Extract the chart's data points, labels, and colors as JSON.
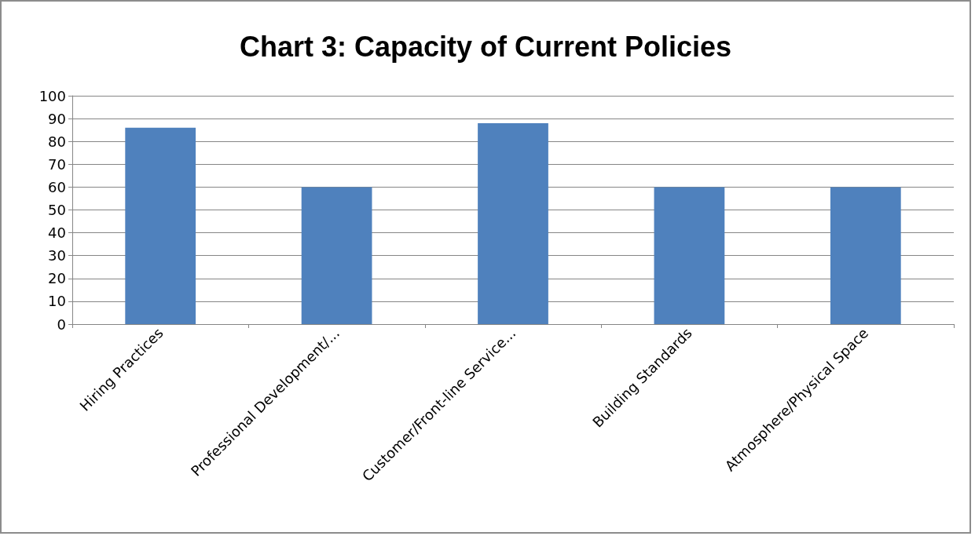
{
  "chart_data": {
    "type": "bar",
    "title": "Chart 3: Capacity of Current Policies",
    "categories": [
      "Hiring Practices",
      "Professional Development/...",
      "Customer/Front-line Service...",
      "Building Standards",
      "Atmosphere/Physical Space"
    ],
    "values": [
      86,
      60,
      88,
      60,
      60
    ],
    "color": "#4f81bd",
    "ylim": [
      0,
      100
    ],
    "yticks": [
      0,
      10,
      20,
      30,
      40,
      50,
      60,
      70,
      80,
      90,
      100
    ],
    "grid": "y"
  }
}
